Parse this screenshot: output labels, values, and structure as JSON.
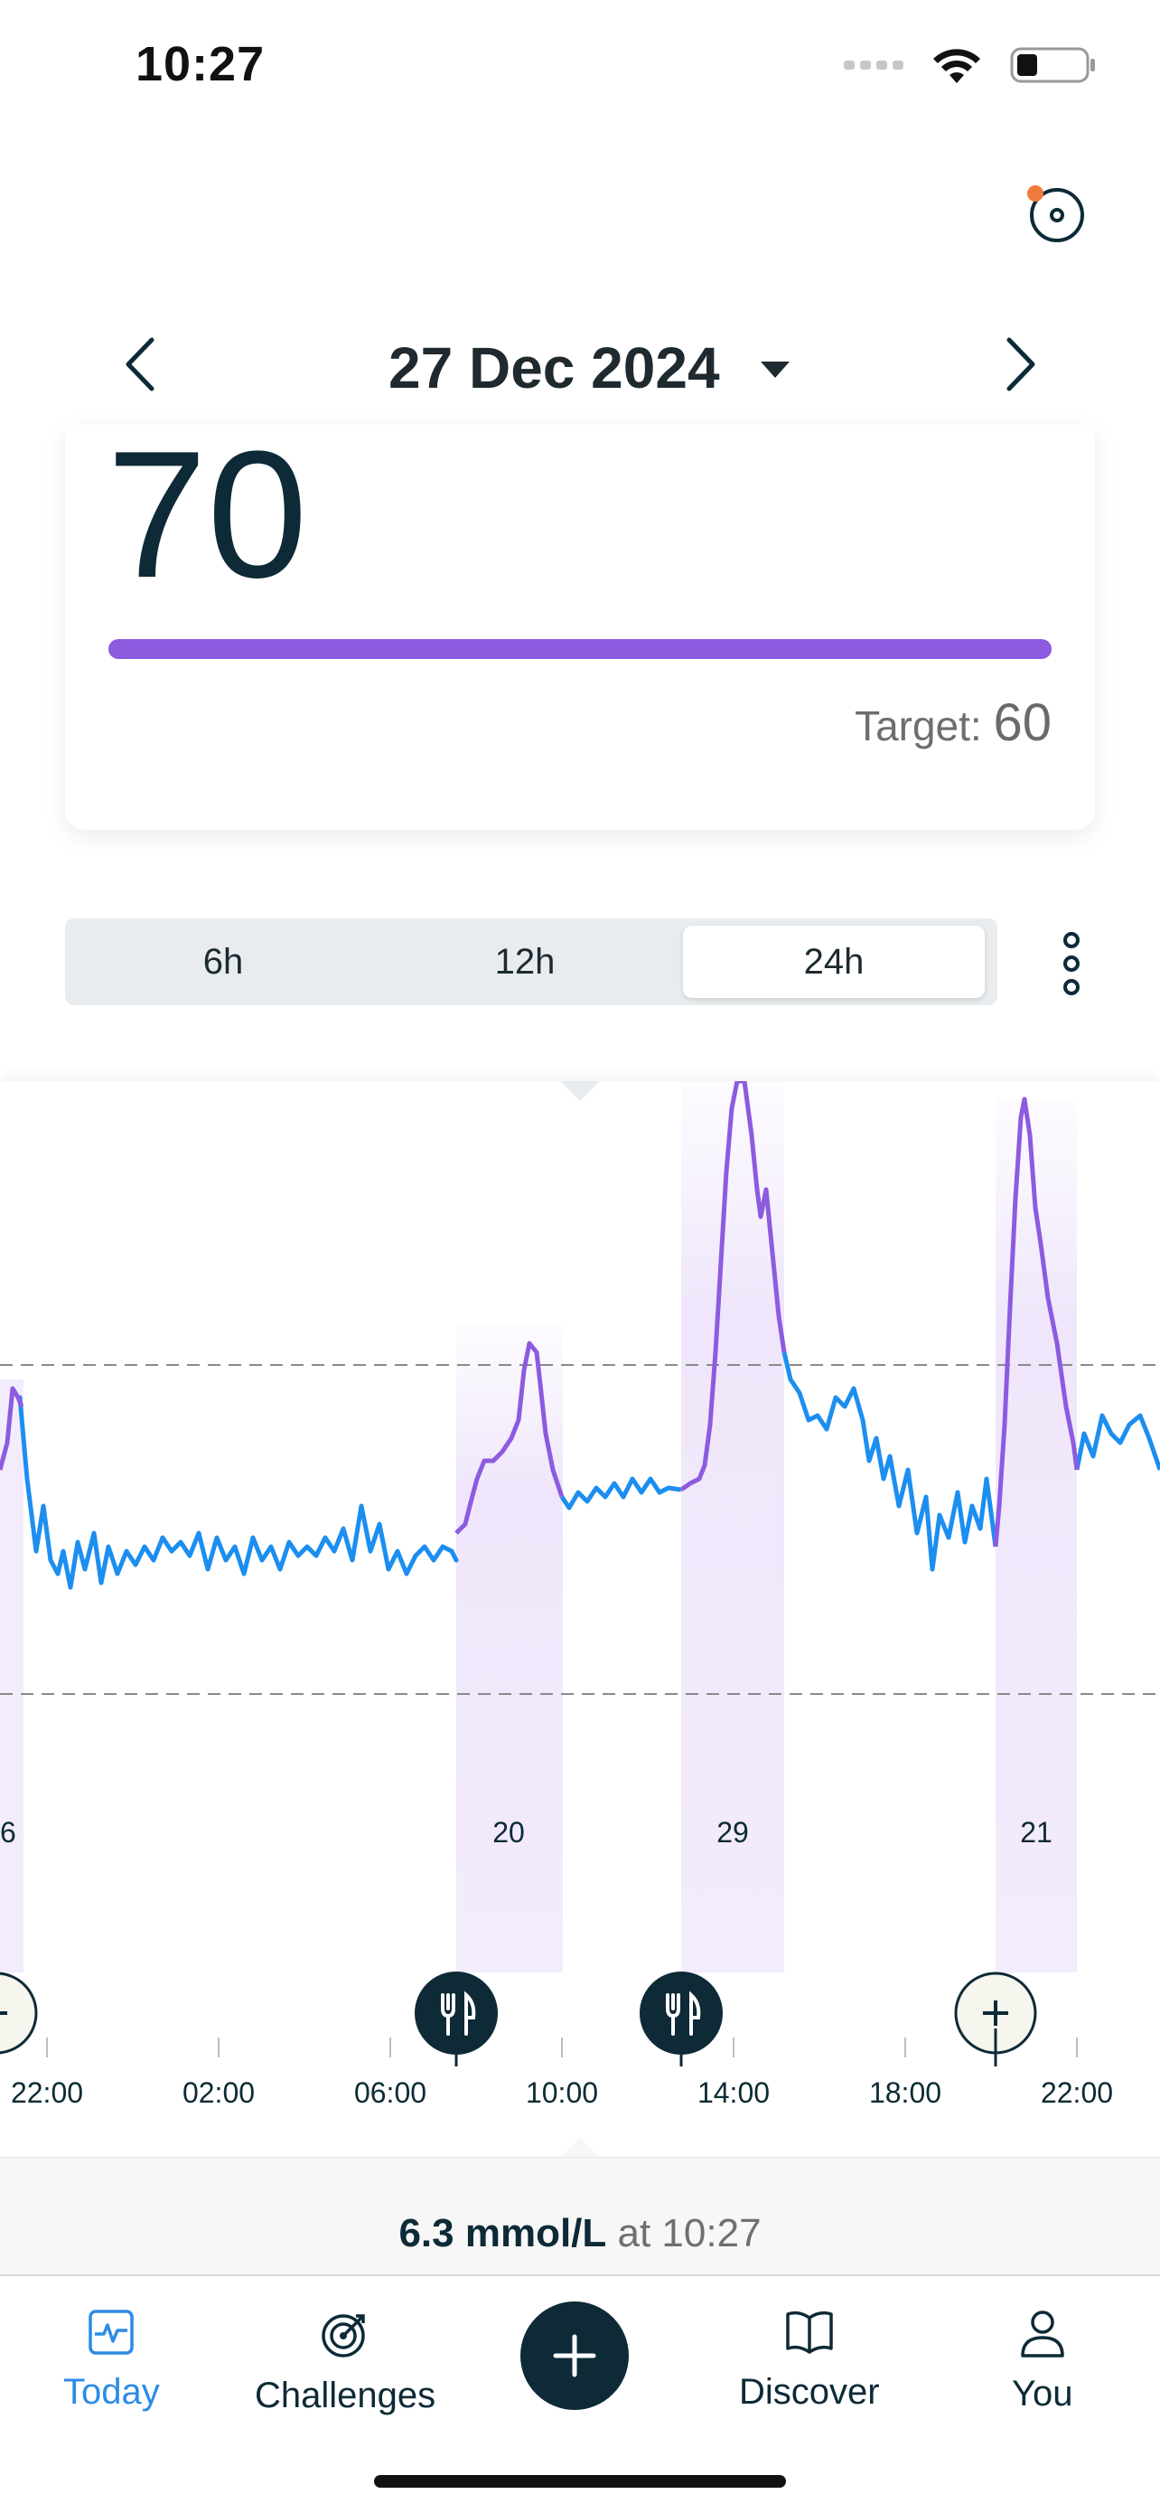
{
  "status_bar": {
    "time": "10:27"
  },
  "header": {
    "date": "27 Dec 2024",
    "icons": {
      "sensor": "sensor-icon",
      "prev": "chevron-left-icon",
      "next": "chevron-right-icon",
      "dropdown": "caret-down-icon"
    }
  },
  "score_card": {
    "value": "70",
    "target_label": "Target:",
    "target_value": "60",
    "bar_color": "#8c5be0"
  },
  "range_selector": {
    "options": [
      "6h",
      "12h",
      "24h"
    ],
    "selected": "24h"
  },
  "chart": {
    "time_labels": [
      "22:00",
      "02:00",
      "06:00",
      "10:00",
      "14:00",
      "18:00",
      "22:00"
    ],
    "spike_scores": [
      "6",
      "20",
      "29",
      "21"
    ],
    "line_color": "#1c8ef0",
    "spike_color": "#8c5be0",
    "markers": [
      {
        "type": "add",
        "icon": "plus-icon"
      },
      {
        "type": "meal",
        "icon": "cutlery-icon"
      },
      {
        "type": "meal",
        "icon": "cutlery-icon"
      },
      {
        "type": "add",
        "icon": "plus-icon"
      }
    ]
  },
  "current_reading": {
    "value": "6.3 mmol/L",
    "at": "at 10:27"
  },
  "tab_bar": {
    "items": [
      {
        "label": "Today",
        "icon": "activity-icon",
        "active": true
      },
      {
        "label": "Challenges",
        "icon": "target-icon",
        "active": false
      },
      {
        "label": "Discover",
        "icon": "book-icon",
        "active": false
      },
      {
        "label": "You",
        "icon": "person-icon",
        "active": false
      }
    ],
    "fab_icon": "plus-icon",
    "accent_color": "#2d8be5"
  }
}
